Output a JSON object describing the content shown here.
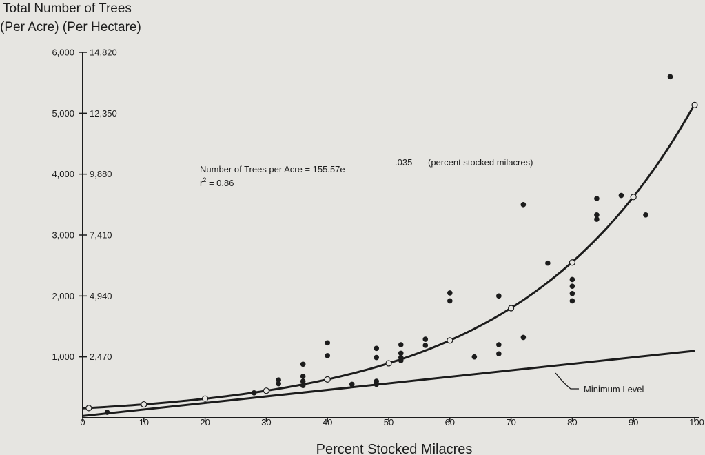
{
  "chart_data": {
    "type": "scatter",
    "ylabel_line1": "Total Number of Trees",
    "ylabel_line2": "(Per Acre) (Per Hectare)",
    "xlabel": "Percent Stocked Milacres",
    "equation_main": "Number of Trees per Acre = 155.57e",
    "equation_exponent": ".035",
    "equation_tail": "(percent stocked milacres)",
    "r2_base": "r",
    "r2_power": "2",
    "r2_value": " = 0.86",
    "minimum_label": "Minimum Level",
    "xlim": [
      0,
      100
    ],
    "ylim": [
      0,
      6000
    ],
    "x_ticks": [
      {
        "value": 0,
        "label": "0"
      },
      {
        "value": 10,
        "label": "10"
      },
      {
        "value": 20,
        "label": "20"
      },
      {
        "value": 30,
        "label": "30"
      },
      {
        "value": 40,
        "label": "40"
      },
      {
        "value": 50,
        "label": "50"
      },
      {
        "value": 60,
        "label": "60"
      },
      {
        "value": 70,
        "label": "70"
      },
      {
        "value": 80,
        "label": "80"
      },
      {
        "value": 90,
        "label": "90"
      },
      {
        "value": 100,
        "label": "100"
      }
    ],
    "y_ticks": [
      {
        "value": 1000,
        "acre": "1,000",
        "hectare": "2,470"
      },
      {
        "value": 2000,
        "acre": "2,000",
        "hectare": "4,940"
      },
      {
        "value": 3000,
        "acre": "3,000",
        "hectare": "7,410"
      },
      {
        "value": 4000,
        "acre": "4,000",
        "hectare": "9,880"
      },
      {
        "value": 5000,
        "acre": "5,000",
        "hectare": "12,350"
      },
      {
        "value": 6000,
        "acre": "6,000",
        "hectare": "14,820"
      }
    ],
    "regression": {
      "a": 155.57,
      "b": 0.035,
      "x_range": [
        0,
        100
      ]
    },
    "minimum_line": {
      "x": [
        0,
        100
      ],
      "y": [
        30,
        1100
      ]
    },
    "observed_points": [
      {
        "x": 4,
        "y": 90
      },
      {
        "x": 28,
        "y": 410
      },
      {
        "x": 32,
        "y": 620
      },
      {
        "x": 32,
        "y": 560
      },
      {
        "x": 36,
        "y": 880
      },
      {
        "x": 36,
        "y": 680
      },
      {
        "x": 36,
        "y": 600
      },
      {
        "x": 36,
        "y": 530
      },
      {
        "x": 40,
        "y": 1230
      },
      {
        "x": 40,
        "y": 1020
      },
      {
        "x": 44,
        "y": 550
      },
      {
        "x": 48,
        "y": 1140
      },
      {
        "x": 48,
        "y": 990
      },
      {
        "x": 48,
        "y": 600
      },
      {
        "x": 48,
        "y": 550
      },
      {
        "x": 52,
        "y": 1200
      },
      {
        "x": 52,
        "y": 1060
      },
      {
        "x": 52,
        "y": 990
      },
      {
        "x": 52,
        "y": 940
      },
      {
        "x": 56,
        "y": 1290
      },
      {
        "x": 56,
        "y": 1190
      },
      {
        "x": 60,
        "y": 2050
      },
      {
        "x": 60,
        "y": 1920
      },
      {
        "x": 64,
        "y": 1000
      },
      {
        "x": 68,
        "y": 2000
      },
      {
        "x": 68,
        "y": 1200
      },
      {
        "x": 68,
        "y": 1050
      },
      {
        "x": 72,
        "y": 3500
      },
      {
        "x": 72,
        "y": 1320
      },
      {
        "x": 76,
        "y": 2540
      },
      {
        "x": 80,
        "y": 2270
      },
      {
        "x": 80,
        "y": 2160
      },
      {
        "x": 80,
        "y": 2040
      },
      {
        "x": 80,
        "y": 1920
      },
      {
        "x": 84,
        "y": 3600
      },
      {
        "x": 84,
        "y": 3330
      },
      {
        "x": 84,
        "y": 3260
      },
      {
        "x": 88,
        "y": 3650
      },
      {
        "x": 92,
        "y": 3330
      },
      {
        "x": 96,
        "y": 5600
      }
    ],
    "curve_points": [
      {
        "x": 1,
        "y": 160
      },
      {
        "x": 10,
        "y": 220
      },
      {
        "x": 20,
        "y": 315
      },
      {
        "x": 30,
        "y": 445
      },
      {
        "x": 40,
        "y": 630
      },
      {
        "x": 50,
        "y": 895
      },
      {
        "x": 60,
        "y": 1270
      },
      {
        "x": 70,
        "y": 1800
      },
      {
        "x": 80,
        "y": 2550
      },
      {
        "x": 90,
        "y": 3625
      },
      {
        "x": 100,
        "y": 5135
      }
    ]
  }
}
